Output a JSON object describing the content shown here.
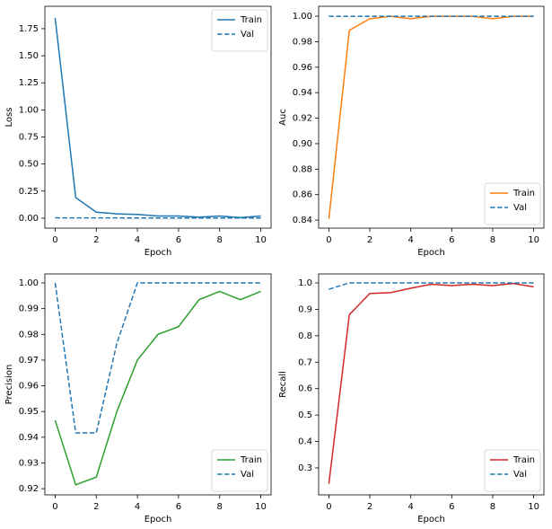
{
  "chart_data": [
    {
      "type": "line",
      "ylabel": "Loss",
      "xlabel": "Epoch",
      "x": [
        0,
        1,
        2,
        3,
        4,
        5,
        6,
        7,
        8,
        9,
        10
      ],
      "series": [
        {
          "name": "Train",
          "color": "#1f77b4",
          "linestyle": "solid",
          "values": [
            1.85,
            0.19,
            0.055,
            0.04,
            0.035,
            0.02,
            0.02,
            0.01,
            0.02,
            0.005,
            0.02
          ]
        },
        {
          "name": "Val",
          "color": "#1f77b4",
          "linestyle": "dashed",
          "values": [
            0.003,
            0.002,
            0.002,
            0.002,
            0.001,
            0.001,
            0.001,
            0.001,
            0.001,
            0.001,
            0.001
          ]
        }
      ],
      "xlim": [
        -0.5,
        10.5
      ],
      "xticks": [
        0,
        2,
        4,
        6,
        8,
        10
      ],
      "ylim": [
        -0.092,
        1.957
      ],
      "yticks": [
        {
          "value": 0,
          "label": "0.00"
        },
        {
          "value": 0.25,
          "label": "0.25"
        },
        {
          "value": 0.5,
          "label": "0.50"
        },
        {
          "value": 0.75,
          "label": "0.75"
        },
        {
          "value": 1,
          "label": "1.00"
        },
        {
          "value": 1.25,
          "label": "1.25"
        },
        {
          "value": 1.5,
          "label": "1.50"
        },
        {
          "value": 1.75,
          "label": "1.75"
        }
      ],
      "legend": "upper right"
    },
    {
      "type": "line",
      "ylabel": "Auc",
      "xlabel": "Epoch",
      "x": [
        0,
        1,
        2,
        3,
        4,
        5,
        6,
        7,
        8,
        9,
        10
      ],
      "series": [
        {
          "name": "Train",
          "color": "#ff7f0e",
          "linestyle": "solid",
          "values": [
            0.841,
            0.989,
            0.998,
            1.0,
            0.998,
            1.0,
            1.0,
            1.0,
            0.998,
            1.0,
            1.0
          ]
        },
        {
          "name": "Val",
          "color": "#1f77b4",
          "linestyle": "dashed",
          "values": [
            1,
            1,
            1,
            1,
            1,
            1,
            1,
            1,
            1,
            1,
            1
          ]
        }
      ],
      "xlim": [
        -0.5,
        10.5
      ],
      "xticks": [
        0,
        2,
        4,
        6,
        8,
        10
      ],
      "ylim": [
        0.8337,
        1.0078
      ],
      "yticks": [
        0.84,
        0.86,
        0.88,
        {
          "value": 0.9,
          "label": "0.90"
        },
        0.92,
        0.94,
        0.96,
        0.98,
        {
          "value": 1,
          "label": "1.00"
        }
      ],
      "legend": "lower right"
    },
    {
      "type": "line",
      "ylabel": "Precision",
      "xlabel": "Epoch",
      "x": [
        0,
        1,
        2,
        3,
        4,
        5,
        6,
        7,
        8,
        9,
        10
      ],
      "series": [
        {
          "name": "Train",
          "color": "#2ca02c",
          "linestyle": "solid",
          "values": [
            0.9466,
            0.9215,
            0.9245,
            0.95,
            0.97,
            0.98,
            0.983,
            0.9935,
            0.9967,
            0.9935,
            0.9967
          ]
        },
        {
          "name": "Val",
          "color": "#1f77b4",
          "linestyle": "dashed",
          "values": [
            1,
            0.9417,
            0.9417,
            0.9765,
            1,
            1,
            1,
            1,
            1,
            1,
            1
          ]
        }
      ],
      "xlim": [
        -0.5,
        10.5
      ],
      "xticks": [
        0,
        2,
        4,
        6,
        8,
        10
      ],
      "ylim": [
        0.9176,
        1.0035
      ],
      "yticks": [
        0.92,
        0.93,
        0.94,
        0.95,
        0.96,
        0.97,
        0.98,
        0.99,
        {
          "value": 1,
          "label": "1.00"
        }
      ],
      "legend": "lower right"
    },
    {
      "type": "line",
      "ylabel": "Recall",
      "xlabel": "Epoch",
      "x": [
        0,
        1,
        2,
        3,
        4,
        5,
        6,
        7,
        8,
        9,
        10
      ],
      "series": [
        {
          "name": "Train",
          "color": "#d62728",
          "linestyle": "solid",
          "values": [
            0.24,
            0.88,
            0.96,
            0.963,
            0.98,
            0.995,
            0.99,
            0.995,
            0.99,
            0.998,
            0.985
          ]
        },
        {
          "name": "Val",
          "color": "#1f77b4",
          "linestyle": "dashed",
          "values": [
            0.976,
            1,
            1,
            1,
            1,
            1,
            1,
            1,
            1,
            1,
            1
          ]
        }
      ],
      "xlim": [
        -0.5,
        10.5
      ],
      "xticks": [
        0,
        2,
        4,
        6,
        8,
        10
      ],
      "ylim": [
        0.198,
        1.034
      ],
      "yticks": [
        0.3,
        0.4,
        0.5,
        0.6,
        0.7,
        0.8,
        0.9,
        {
          "value": 1,
          "label": "1.0"
        }
      ],
      "legend": "lower right"
    }
  ]
}
